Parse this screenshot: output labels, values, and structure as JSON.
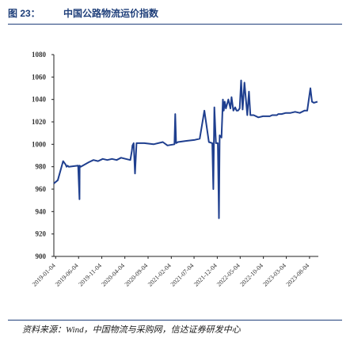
{
  "figure": {
    "number": "图 23：",
    "title": "中国公路物流运价指数",
    "source": "资料来源：Wind，中国物流与采购网，信达证券研发中心"
  },
  "colors": {
    "line": "#1f3f8f",
    "axis": "#222222",
    "title": "#1f3f7a"
  },
  "chart_data": {
    "type": "line",
    "title": "",
    "xlabel": "",
    "ylabel": "",
    "ylim": [
      900,
      1080
    ],
    "yticks": [
      900,
      920,
      940,
      960,
      980,
      1000,
      1020,
      1040,
      1060,
      1080
    ],
    "grid": false,
    "legend": "none",
    "xlim": [
      "2018-12-23",
      "2023-10-01"
    ],
    "x_tick_labels": [
      "2019-01-04",
      "2019-06-04",
      "2019-11-04",
      "2020-04-04",
      "2020-09-04",
      "2021-02-04",
      "2021-07-04",
      "2021-12-04",
      "2022-05-04",
      "2022-10-04",
      "2023-03-04",
      "2023-08-04"
    ],
    "series": [
      {
        "name": "",
        "x": [
          "2018-12-23",
          "2019-01-18",
          "2019-02-22",
          "2019-03-10",
          "2019-03-17",
          "2019-03-24",
          "2019-03-31",
          "2019-06-01",
          "2019-06-10",
          "2019-06-11",
          "2019-06-18",
          "2019-08-10",
          "2019-09-10",
          "2019-10-10",
          "2019-11-10",
          "2019-12-10",
          "2020-01-10",
          "2020-02-10",
          "2020-03-10",
          "2020-04-10",
          "2020-05-10",
          "2020-05-20",
          "2020-05-24",
          "2020-06-01",
          "2020-06-10",
          "2020-06-20",
          "2020-08-10",
          "2020-10-10",
          "2020-12-10",
          "2021-01-10",
          "2021-02-25",
          "2021-03-02",
          "2021-03-08",
          "2021-03-20",
          "2021-05-10",
          "2021-07-10",
          "2021-08-10",
          "2021-09-10",
          "2021-10-10",
          "2021-11-01",
          "2021-11-08",
          "2021-11-15",
          "2021-11-25",
          "2021-12-08",
          "2021-12-15",
          "2021-12-20",
          "2022-01-01",
          "2022-01-10",
          "2022-01-16",
          "2022-01-22",
          "2022-01-30",
          "2022-02-15",
          "2022-03-01",
          "2022-03-08",
          "2022-03-20",
          "2022-04-01",
          "2022-04-10",
          "2022-04-20",
          "2022-05-01",
          "2022-05-10",
          "2022-05-20",
          "2022-06-01",
          "2022-06-20",
          "2022-07-01",
          "2022-07-10",
          "2022-07-20",
          "2022-08-01",
          "2022-09-01",
          "2022-10-01",
          "2022-11-01",
          "2022-11-15",
          "2022-12-01",
          "2022-12-10",
          "2022-12-20",
          "2023-01-01",
          "2023-01-10",
          "2023-02-01",
          "2023-03-01",
          "2023-04-01",
          "2023-05-01",
          "2023-06-01",
          "2023-07-01",
          "2023-07-20",
          "2023-08-10",
          "2023-08-20",
          "2023-09-01",
          "2023-09-25"
        ],
        "y": [
          965,
          968,
          985,
          982,
          980,
          981,
          980,
          981,
          951,
          981,
          980,
          984,
          986,
          985,
          987,
          986,
          987,
          986,
          988,
          987,
          986,
          994,
          999,
          1001,
          974,
          1001,
          1001,
          1000,
          1002,
          999,
          1000,
          1027,
          1001,
          1002,
          1003,
          1004,
          1005,
          1030,
          1002,
          1001,
          960,
          1033,
          1001,
          1001,
          934,
          1008,
          1006,
          1040,
          1030,
          1038,
          1032,
          1040,
          1032,
          1042,
          1030,
          1033,
          1030,
          1030,
          1032,
          1057,
          1031,
          1055,
          1026,
          1047,
          1026,
          1026,
          1026,
          1024,
          1025,
          1025,
          1025,
          1026,
          1026,
          1026,
          1026,
          1027,
          1027,
          1028,
          1028,
          1029,
          1028,
          1030,
          1030,
          1050,
          1038,
          1037,
          1038
        ]
      }
    ]
  }
}
